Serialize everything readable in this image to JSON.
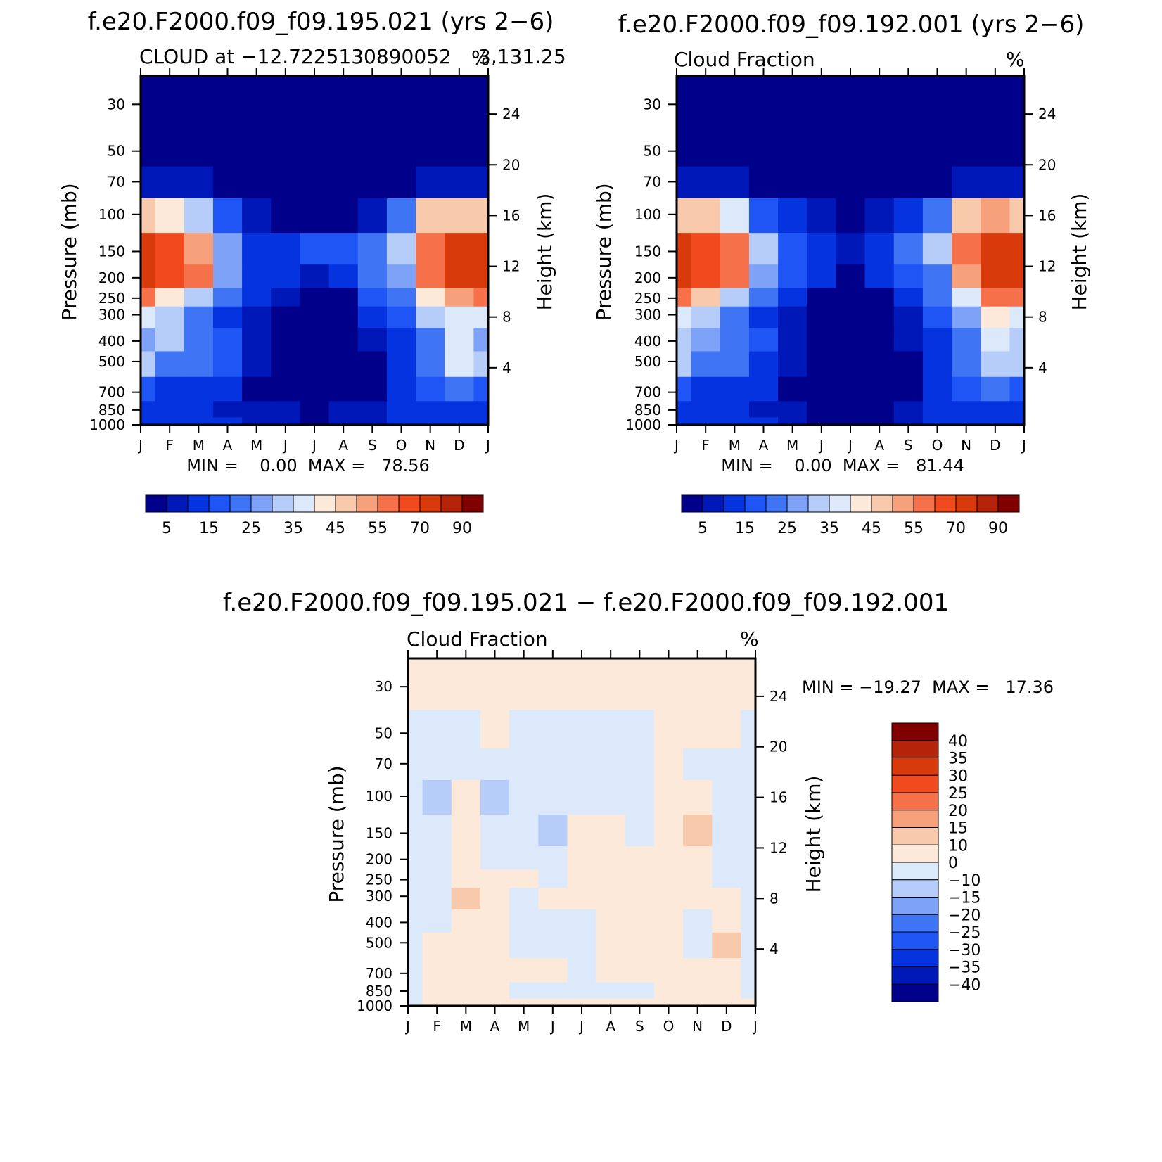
{
  "chart_data": [
    {
      "type": "heatmap",
      "title": "f.e20.F2000.f09_f09.195.021 (yrs 2−6)",
      "subtitle_left": "CLOUD at −12.7225130890052",
      "subtitle_mid": "3,131.25",
      "subtitle_right": "%",
      "ylabel": "Pressure (mb)",
      "ylabel_right": "Height (km)",
      "x_ticks": [
        "J",
        "F",
        "M",
        "A",
        "M",
        "J",
        "J",
        "A",
        "S",
        "O",
        "N",
        "D",
        "J"
      ],
      "y_ticks": [
        "30",
        "50",
        "70",
        "100",
        "150",
        "200",
        "250",
        "300",
        "400",
        "500",
        "700",
        "850",
        "1000"
      ],
      "y_ticks_right": [
        "24",
        "20",
        "16",
        "12",
        "8",
        "4"
      ],
      "minmax_text": "MIN =    0.00  MAX =   78.56",
      "min": 0.0,
      "max": 78.56,
      "colorbar_labels": [
        "5",
        "15",
        "25",
        "35",
        "45",
        "55",
        "70",
        "90"
      ],
      "colorbar_levels": [
        5,
        10,
        15,
        20,
        25,
        30,
        35,
        40,
        45,
        50,
        55,
        60,
        70,
        80,
        90
      ],
      "colorbar_colors": [
        "#00008b",
        "#0018b8",
        "#0633e0",
        "#1f55f5",
        "#3f74f5",
        "#7ea2f8",
        "#b6cdf9",
        "#dce9fb",
        "#fde9da",
        "#f9c9ab",
        "#f7a17c",
        "#f6704a",
        "#f04a1e",
        "#d83a0c",
        "#b4230a",
        "#800000"
      ],
      "z_grid": [
        [
          0,
          0,
          0,
          0,
          0,
          0,
          0,
          0,
          0,
          0,
          0,
          0,
          0
        ],
        [
          0,
          0,
          0,
          0,
          0,
          0,
          0,
          0,
          0,
          0,
          0,
          0,
          0
        ],
        [
          8,
          8,
          5,
          3,
          2,
          1,
          1,
          1,
          2,
          4,
          6,
          8,
          8
        ],
        [
          45,
          42,
          30,
          15,
          8,
          4,
          2,
          4,
          8,
          20,
          45,
          48,
          45
        ],
        [
          75,
          65,
          50,
          28,
          14,
          12,
          16,
          18,
          24,
          30,
          55,
          75,
          75
        ],
        [
          70,
          65,
          55,
          28,
          14,
          10,
          6,
          10,
          22,
          26,
          55,
          72,
          70
        ],
        [
          55,
          40,
          30,
          24,
          12,
          8,
          2,
          4,
          18,
          22,
          40,
          52,
          55
        ],
        [
          35,
          30,
          20,
          14,
          8,
          2,
          1,
          2,
          10,
          18,
          30,
          38,
          35
        ],
        [
          28,
          32,
          22,
          16,
          7,
          1,
          0,
          1,
          6,
          14,
          24,
          35,
          28
        ],
        [
          30,
          22,
          22,
          16,
          6,
          1,
          0,
          1,
          4,
          12,
          22,
          38,
          30
        ],
        [
          16,
          14,
          14,
          12,
          4,
          1,
          0,
          1,
          3,
          10,
          16,
          22,
          16
        ],
        [
          12,
          12,
          10,
          8,
          8,
          6,
          4,
          6,
          8,
          10,
          14,
          12,
          12
        ],
        [
          12,
          12,
          12,
          10,
          8,
          6,
          4,
          6,
          8,
          10,
          12,
          12,
          12
        ]
      ]
    },
    {
      "type": "heatmap",
      "title": "f.e20.F2000.f09_f09.192.001 (yrs 2−6)",
      "subtitle_left": "Cloud Fraction",
      "subtitle_right": "%",
      "ylabel": "Pressure (mb)",
      "ylabel_right": "Height (km)",
      "x_ticks": [
        "J",
        "F",
        "M",
        "A",
        "M",
        "J",
        "J",
        "A",
        "S",
        "O",
        "N",
        "D",
        "J"
      ],
      "y_ticks": [
        "30",
        "50",
        "70",
        "100",
        "150",
        "200",
        "250",
        "300",
        "400",
        "500",
        "700",
        "850",
        "1000"
      ],
      "y_ticks_right": [
        "24",
        "20",
        "16",
        "12",
        "8",
        "4"
      ],
      "minmax_text": "MIN =    0.00  MAX =   81.44",
      "min": 0.0,
      "max": 81.44,
      "colorbar_labels": [
        "5",
        "15",
        "25",
        "35",
        "45",
        "55",
        "70",
        "90"
      ],
      "colorbar_levels": [
        5,
        10,
        15,
        20,
        25,
        30,
        35,
        40,
        45,
        50,
        55,
        60,
        70,
        80,
        90
      ],
      "colorbar_colors": [
        "#00008b",
        "#0018b8",
        "#0633e0",
        "#1f55f5",
        "#3f74f5",
        "#7ea2f8",
        "#b6cdf9",
        "#dce9fb",
        "#fde9da",
        "#f9c9ab",
        "#f7a17c",
        "#f6704a",
        "#f04a1e",
        "#d83a0c",
        "#b4230a",
        "#800000"
      ],
      "z_grid": [
        [
          0,
          0,
          0,
          0,
          0,
          0,
          0,
          0,
          0,
          0,
          0,
          0,
          0
        ],
        [
          0,
          0,
          0,
          0,
          0,
          0,
          0,
          0,
          0,
          0,
          0,
          0,
          0
        ],
        [
          8,
          8,
          5,
          3,
          2,
          1,
          1,
          1,
          2,
          4,
          6,
          8,
          8
        ],
        [
          48,
          45,
          35,
          18,
          10,
          6,
          4,
          8,
          12,
          24,
          45,
          50,
          48
        ],
        [
          78,
          68,
          55,
          30,
          18,
          12,
          8,
          14,
          24,
          30,
          55,
          75,
          78
        ],
        [
          72,
          66,
          55,
          28,
          16,
          10,
          4,
          10,
          18,
          24,
          50,
          72,
          72
        ],
        [
          55,
          45,
          32,
          22,
          10,
          4,
          2,
          2,
          14,
          20,
          38,
          55,
          55
        ],
        [
          36,
          30,
          22,
          14,
          6,
          2,
          1,
          1,
          8,
          16,
          28,
          40,
          36
        ],
        [
          30,
          28,
          22,
          16,
          6,
          1,
          0,
          1,
          5,
          14,
          24,
          36,
          30
        ],
        [
          30,
          22,
          20,
          14,
          6,
          1,
          0,
          1,
          4,
          12,
          20,
          34,
          30
        ],
        [
          16,
          14,
          14,
          12,
          4,
          1,
          0,
          1,
          3,
          10,
          16,
          22,
          16
        ],
        [
          12,
          12,
          10,
          8,
          6,
          4,
          2,
          4,
          8,
          10,
          14,
          12,
          12
        ],
        [
          12,
          12,
          12,
          10,
          8,
          4,
          2,
          4,
          8,
          10,
          12,
          12,
          12
        ]
      ]
    },
    {
      "type": "heatmap",
      "title": "f.e20.F2000.f09_f09.195.021 − f.e20.F2000.f09_f09.192.001",
      "subtitle_left": "Cloud Fraction",
      "subtitle_right": "%",
      "ylabel": "Pressure (mb)",
      "ylabel_right": "Height (km)",
      "x_ticks": [
        "J",
        "F",
        "M",
        "A",
        "M",
        "J",
        "J",
        "A",
        "S",
        "O",
        "N",
        "D",
        "J"
      ],
      "y_ticks": [
        "30",
        "50",
        "70",
        "100",
        "150",
        "200",
        "250",
        "300",
        "400",
        "500",
        "700",
        "850",
        "1000"
      ],
      "y_ticks_right": [
        "24",
        "20",
        "16",
        "12",
        "8",
        "4"
      ],
      "minmax_text": "MIN = −19.27  MAX =   17.36",
      "min": -19.27,
      "max": 17.36,
      "colorbar_labels": [
        "40",
        "35",
        "30",
        "25",
        "20",
        "15",
        "10",
        "0",
        "−10",
        "−15",
        "−20",
        "−25",
        "−30",
        "−35",
        "−40"
      ],
      "colorbar_levels": [
        -40,
        -35,
        -30,
        -25,
        -20,
        -15,
        -10,
        0,
        10,
        15,
        20,
        25,
        30,
        35,
        40
      ],
      "colorbar_colors": [
        "#00008b",
        "#0018b8",
        "#0633e0",
        "#1f55f5",
        "#3f74f5",
        "#7ea2f8",
        "#b6cdf9",
        "#dce9fb",
        "#fde9da",
        "#f9c9ab",
        "#f7a17c",
        "#f6704a",
        "#f04a1e",
        "#d83a0c",
        "#b4230a",
        "#800000"
      ],
      "z_grid": [
        [
          2,
          2,
          2,
          2,
          2,
          2,
          2,
          2,
          2,
          2,
          2,
          2,
          2
        ],
        [
          -2,
          -2,
          -2,
          2,
          -2,
          -2,
          -2,
          -2,
          -2,
          2,
          2,
          2,
          -2
        ],
        [
          -2,
          -6,
          -3,
          -2,
          -3,
          -2,
          -2,
          -2,
          -2,
          2,
          -3,
          -2,
          -2
        ],
        [
          -3,
          -14,
          3,
          -11,
          -2,
          -2,
          -2,
          -2,
          -3,
          2,
          2,
          -2,
          -3
        ],
        [
          -3,
          -8,
          2,
          -4,
          -5,
          -11,
          2,
          3,
          -2,
          2,
          11,
          -2,
          -3
        ],
        [
          -2,
          -7,
          4,
          -2,
          -2,
          -8,
          2,
          2,
          2,
          2,
          6,
          -2,
          -2
        ],
        [
          -2,
          -2,
          6,
          2,
          2,
          -2,
          2,
          2,
          2,
          2,
          2,
          -2,
          -2
        ],
        [
          -2,
          -2,
          11,
          2,
          -3,
          2,
          2,
          2,
          2,
          2,
          2,
          2,
          -2
        ],
        [
          -2,
          -2,
          7,
          2,
          -2,
          -2,
          -2,
          2,
          2,
          2,
          -3,
          2,
          -2
        ],
        [
          -2,
          2,
          3,
          2,
          -2,
          -2,
          -2,
          2,
          2,
          2,
          -2,
          11,
          -2
        ],
        [
          -2,
          2,
          2,
          2,
          2,
          2,
          -2,
          2,
          2,
          2,
          2,
          2,
          -2
        ],
        [
          -2,
          2,
          2,
          2,
          -2,
          -2,
          -2,
          -2,
          -2,
          2,
          2,
          2,
          -2
        ],
        [
          -3,
          2,
          2,
          2,
          2,
          2,
          2,
          2,
          2,
          2,
          2,
          2,
          2
        ]
      ]
    }
  ]
}
